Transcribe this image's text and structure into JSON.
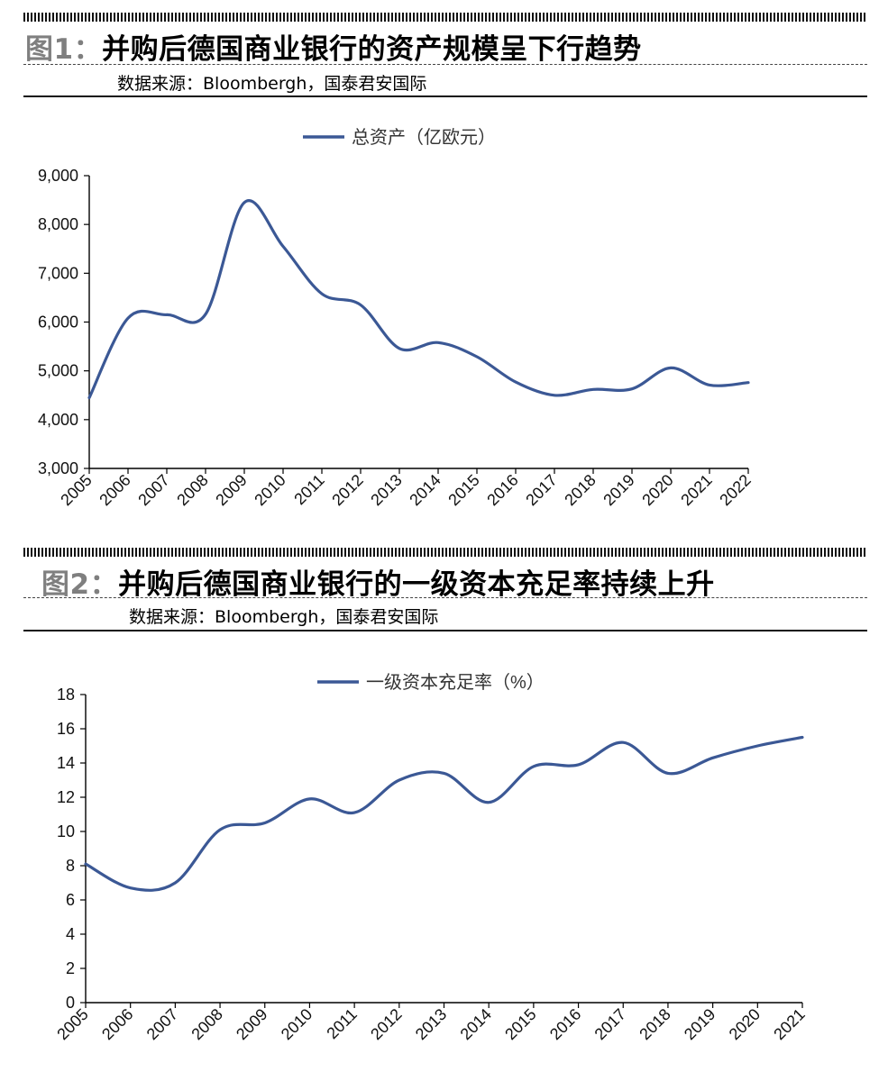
{
  "figures": [
    {
      "number": "图1：",
      "title": "并购后德国商业银行的资产规模呈下行趋势",
      "source": "数据来源：Bloombergh，国泰君安国际"
    },
    {
      "number": "图2：",
      "title": "并购后德国商业银行的一级资本充足率持续上升",
      "source": "数据来源：Bloombergh，国泰君安国际"
    }
  ],
  "colors": {
    "line": "#3b5895",
    "axis": "#000000",
    "figure_number": "#7f7f7f"
  },
  "chart_data": [
    {
      "type": "line",
      "title": "",
      "xlabel": "",
      "ylabel": "",
      "legend_position": "top-center",
      "grid": false,
      "categories": [
        "2005",
        "2006",
        "2007",
        "2008",
        "2009",
        "2010",
        "2011",
        "2012",
        "2013",
        "2014",
        "2015",
        "2016",
        "2017",
        "2018",
        "2019",
        "2020",
        "2021",
        "2022"
      ],
      "ylim": [
        3000,
        9000
      ],
      "yticks": [
        3000,
        4000,
        5000,
        6000,
        7000,
        8000,
        9000
      ],
      "ytick_labels": [
        "3,000",
        "4,000",
        "5,000",
        "6,000",
        "7,000",
        "8,000",
        "9,000"
      ],
      "series": [
        {
          "name": "总资产（亿欧元）",
          "values": [
            4450,
            6080,
            6150,
            6160,
            8450,
            7550,
            6580,
            6350,
            5460,
            5580,
            5290,
            4770,
            4500,
            4620,
            4630,
            5060,
            4710,
            4760
          ]
        }
      ]
    },
    {
      "type": "line",
      "title": "",
      "xlabel": "",
      "ylabel": "",
      "legend_position": "top-center",
      "grid": false,
      "categories": [
        "2005",
        "2006",
        "2007",
        "2008",
        "2009",
        "2010",
        "2011",
        "2012",
        "2013",
        "2014",
        "2015",
        "2016",
        "2017",
        "2018",
        "2019",
        "2020",
        "2021"
      ],
      "ylim": [
        0,
        18
      ],
      "yticks": [
        0,
        2,
        4,
        6,
        8,
        10,
        12,
        14,
        16,
        18
      ],
      "ytick_labels": [
        "0",
        "2",
        "4",
        "6",
        "8",
        "10",
        "12",
        "14",
        "16",
        "18"
      ],
      "series": [
        {
          "name": "一级资本充足率（%）",
          "values": [
            8.1,
            6.7,
            7.0,
            10.1,
            10.5,
            11.9,
            11.1,
            13.0,
            13.4,
            11.7,
            13.8,
            13.9,
            15.2,
            13.4,
            14.3,
            15.0,
            15.5
          ]
        }
      ]
    }
  ]
}
